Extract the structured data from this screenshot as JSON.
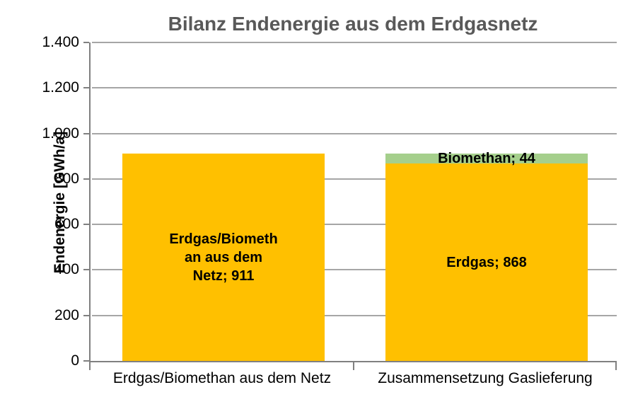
{
  "chart_data": {
    "type": "bar",
    "stacked": true,
    "title": "Bilanz Endenergie aus dem Erdgasnetz",
    "ylabel": "Endenergie [GWh/a]",
    "xlabel": "",
    "ylim": [
      0,
      1400
    ],
    "ytick_step": 200,
    "yticks": [
      {
        "value": 0,
        "label": "0"
      },
      {
        "value": 200,
        "label": "200"
      },
      {
        "value": 400,
        "label": "400"
      },
      {
        "value": 600,
        "label": "600"
      },
      {
        "value": 800,
        "label": "800"
      },
      {
        "value": 1000,
        "label": "1.000"
      },
      {
        "value": 1200,
        "label": "1.200"
      },
      {
        "value": 1400,
        "label": "1.400"
      }
    ],
    "grid": true,
    "legend": "none",
    "categories": [
      "Erdgas/Biomethan aus dem Netz",
      "Zusammensetzung Gaslieferung"
    ],
    "bars": [
      {
        "category": "Erdgas/Biomethan aus dem Netz",
        "segments": [
          {
            "name": "Erdgas/Biomethan aus dem Netz",
            "value": 911,
            "color": "#FFC000",
            "label_lines": [
              "Erdgas/Biometh",
              "an aus dem",
              "Netz; 911"
            ]
          }
        ]
      },
      {
        "category": "Zusammensetzung Gaslieferung",
        "segments": [
          {
            "name": "Erdgas",
            "value": 868,
            "color": "#FFC000",
            "label_lines": [
              "Erdgas; 868"
            ]
          },
          {
            "name": "Biomethan",
            "value": 44,
            "color": "#A5CF8C",
            "label_lines": [
              "Biomethan; 44"
            ]
          }
        ]
      }
    ],
    "colors": {
      "bar_gold": "#FFC000",
      "bar_green": "#A5CF8C",
      "title_text": "#595959",
      "axis_line": "#808080",
      "gridline": "#A6A6A6",
      "label_text": "#000000"
    }
  }
}
